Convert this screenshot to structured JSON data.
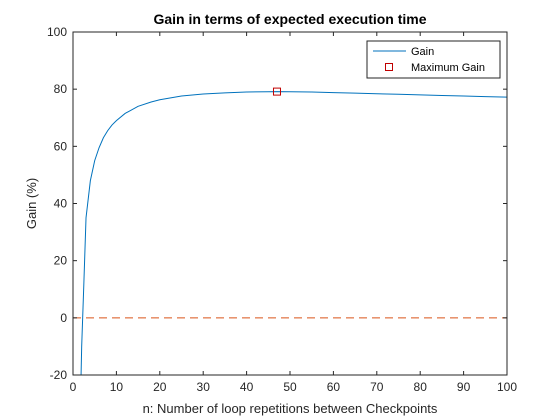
{
  "chart_data": {
    "type": "line",
    "title": "Gain in terms of expected execution time",
    "xlabel": "n: Number of loop repetitions between Checkpoints",
    "ylabel": "Gain (%)",
    "xlim": [
      0,
      100
    ],
    "ylim": [
      -20,
      100
    ],
    "xticks": [
      0,
      10,
      20,
      30,
      40,
      50,
      60,
      70,
      80,
      90,
      100
    ],
    "yticks": [
      -20,
      0,
      20,
      40,
      60,
      80,
      100
    ],
    "grid": false,
    "legend_position": "top-right",
    "series": [
      {
        "name": "Gain",
        "color": "#0072BD",
        "x": [
          1.86,
          2,
          2.5,
          3,
          4,
          5,
          6,
          7,
          8,
          9,
          10,
          12,
          15,
          18,
          20,
          25,
          30,
          35,
          40,
          45,
          47,
          50,
          55,
          60,
          65,
          70,
          75,
          80,
          85,
          90,
          95,
          100
        ],
        "y": [
          -20,
          -10,
          12,
          35,
          48,
          55,
          59.5,
          63,
          65.5,
          67.5,
          69,
          71.5,
          74,
          75.5,
          76.3,
          77.6,
          78.3,
          78.7,
          79,
          79.1,
          79.15,
          79.1,
          79,
          78.8,
          78.6,
          78.4,
          78.2,
          78,
          77.8,
          77.6,
          77.4,
          77.2
        ]
      },
      {
        "name": "Maximum Gain",
        "color": "#C00000",
        "marker": "square",
        "x": [
          47
        ],
        "y": [
          79.15
        ]
      }
    ],
    "reference_lines": [
      {
        "y": 0,
        "color": "#D95319",
        "style": "dashed"
      }
    ]
  }
}
